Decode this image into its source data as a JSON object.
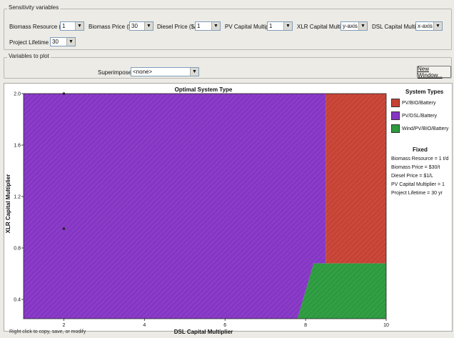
{
  "sensitivity": {
    "title": "Sensitivity variables",
    "fields": [
      {
        "label": "Biomass Resource (t/d)",
        "value": "1"
      },
      {
        "label": "Biomass Price ($/t)",
        "value": "30"
      },
      {
        "label": "Diesel Price ($/L)",
        "value": "1"
      },
      {
        "label": "PV Capital Multiplier",
        "value": "1"
      },
      {
        "label": "XLR Capital Multiplier",
        "value": "y-axis"
      },
      {
        "label": "DSL Capital Multiplier",
        "value": "x-axis"
      },
      {
        "label": "Project Lifetime (yr)",
        "value": "30"
      }
    ]
  },
  "plot_vars": {
    "title": "Variables to plot",
    "superimposed_label": "Superimposed",
    "superimposed_value": "<none>",
    "new_window_label": "New Window..."
  },
  "chart_data": {
    "type": "heatmap",
    "title": "Optimal System Type",
    "xlabel": "DSL Capital Multiplier",
    "ylabel": "XLR Capital Multiplier",
    "xlim": [
      1,
      10
    ],
    "ylim": [
      0.25,
      2.0
    ],
    "xticks": [
      "2",
      "4",
      "6",
      "8",
      "10"
    ],
    "yticks": [
      "0.4",
      "0.8",
      "1.2",
      "1.6",
      "2.0"
    ],
    "regions": [
      {
        "name": "PV/BIO/Battery",
        "color": "#c64234",
        "polygon": [
          [
            8.5,
            2.0
          ],
          [
            10,
            2.0
          ],
          [
            10,
            0.68
          ],
          [
            8.5,
            0.68
          ]
        ]
      },
      {
        "name": "PV/DSL/Battery",
        "color": "#8536c4",
        "polygon": [
          [
            1,
            2.0
          ],
          [
            8.5,
            2.0
          ],
          [
            8.5,
            0.68
          ],
          [
            8.2,
            0.68
          ],
          [
            7.8,
            0.25
          ],
          [
            1,
            0.25
          ]
        ]
      },
      {
        "name": "Wind/PV/BIO/Battery",
        "color": "#2c9a3e",
        "polygon": [
          [
            8.2,
            0.68
          ],
          [
            10,
            0.68
          ],
          [
            10,
            0.25
          ],
          [
            7.8,
            0.25
          ]
        ]
      }
    ],
    "markers": [
      [
        2,
        2.0
      ],
      [
        2,
        0.95
      ]
    ],
    "legend_title": "System Types",
    "legend": [
      {
        "name": "PV/BIO/Battery",
        "color": "#c64234"
      },
      {
        "name": "PV/DSL/Battery",
        "color": "#8536c4"
      },
      {
        "name": "Wind/PV/BIO/Battery",
        "color": "#2c9a3e"
      }
    ],
    "fixed_title": "Fixed",
    "fixed": [
      "Biomass Resource = 1 t/d",
      "Biomass Price = $30/t",
      "Diesel Price = $1/L",
      "PV Capital Multiplier = 1",
      "Project Lifetime = 30 yr"
    ]
  },
  "status_text": "Right click to copy, save, or modify"
}
